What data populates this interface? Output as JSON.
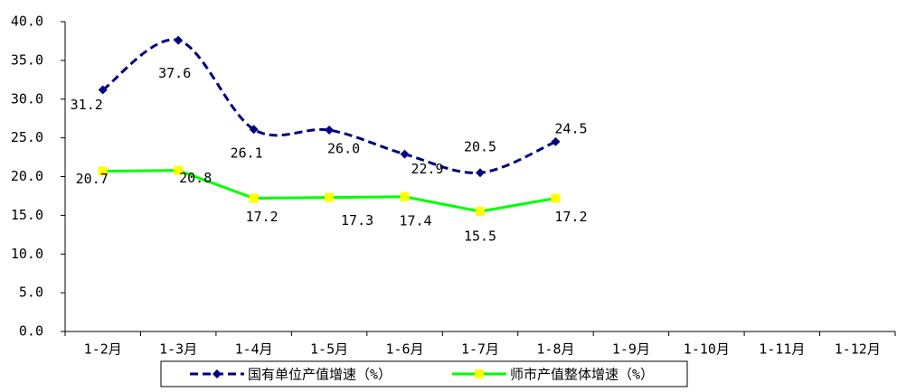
{
  "chart_data": {
    "type": "line",
    "categories": [
      "1-2月",
      "1-3月",
      "1-4月",
      "1-5月",
      "1-6月",
      "1-7月",
      "1-8月",
      "1-9月",
      "1-10月",
      "1-11月",
      "1-12月"
    ],
    "series": [
      {
        "name": "国有单位产值增速（%）",
        "color": "#000080",
        "dash": true,
        "smooth": true,
        "marker": "diamond",
        "values": [
          31.2,
          37.6,
          26.1,
          26.0,
          22.9,
          20.5,
          24.5,
          null,
          null,
          null,
          null
        ],
        "value_labels": [
          "31.2",
          "37.6",
          "26.1",
          "26.0",
          "22.9",
          "20.5",
          "24.5",
          null,
          null,
          null,
          null
        ]
      },
      {
        "name": "师市产值整体增速（%）",
        "color": "#00ff00",
        "marker_color": "#ffff00",
        "dash": false,
        "smooth": false,
        "marker": "square",
        "values": [
          20.7,
          20.8,
          17.2,
          17.3,
          17.4,
          15.5,
          17.2,
          null,
          null,
          null,
          null
        ],
        "value_labels": [
          "20.7",
          "20.8",
          "17.2",
          "17.3",
          "17.4",
          "15.5",
          "17.2",
          null,
          null,
          null,
          null
        ]
      }
    ],
    "ylim": [
      0,
      40
    ],
    "yticks": [
      {
        "value": 0,
        "label": "0.0"
      },
      {
        "value": 5,
        "label": "5.0"
      },
      {
        "value": 10,
        "label": "10.0"
      },
      {
        "value": 15,
        "label": "15.0"
      },
      {
        "value": 20,
        "label": "20.0"
      },
      {
        "value": 25,
        "label": "25.0"
      },
      {
        "value": 30,
        "label": "30.0"
      },
      {
        "value": 35,
        "label": "35.0"
      },
      {
        "value": 40,
        "label": "40.0"
      }
    ],
    "legend": "bottom"
  }
}
